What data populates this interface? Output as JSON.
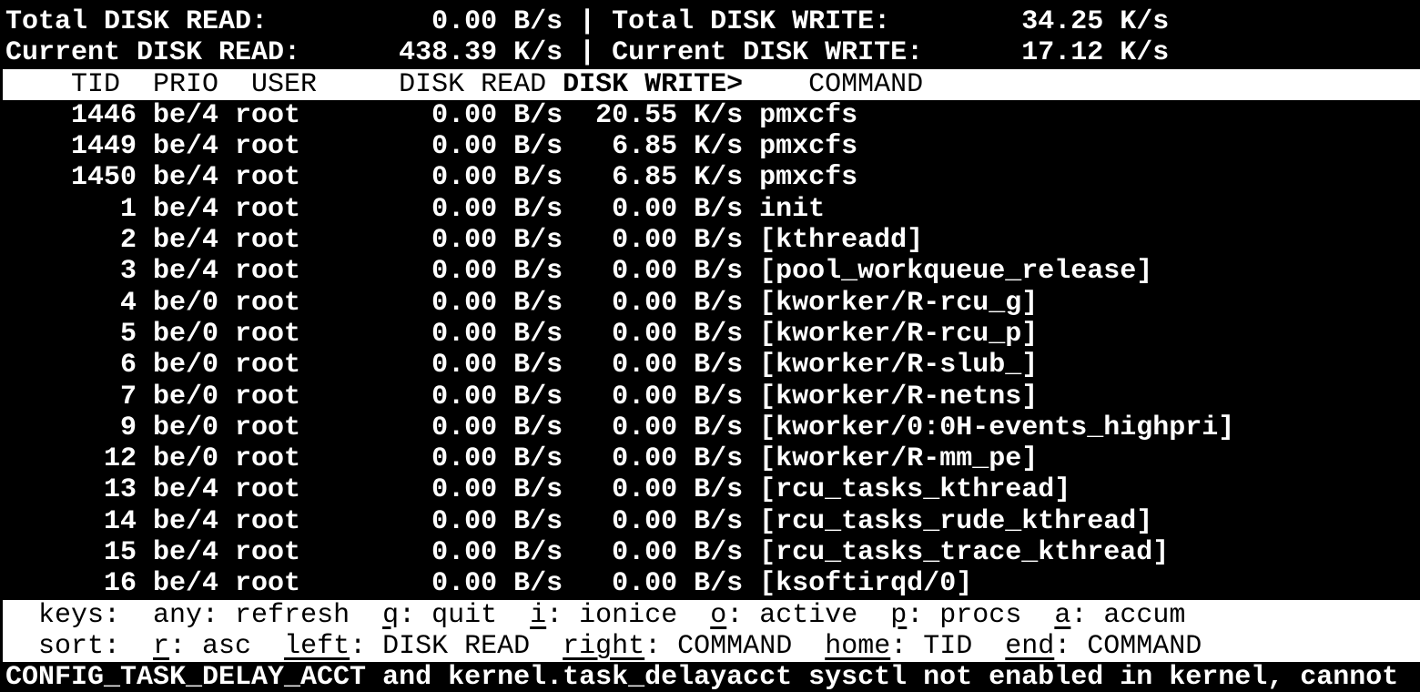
{
  "terminal": {
    "summary": {
      "separator": "|",
      "rows": [
        {
          "label": "Total DISK READ:",
          "value": "0.00 B/s",
          "label2": "Total DISK WRITE:",
          "value2": "34.25 K/s"
        },
        {
          "label": "Current DISK READ:",
          "value": "438.39 K/s",
          "label2": "Current DISK WRITE:",
          "value2": "17.12 K/s"
        }
      ]
    },
    "table": {
      "headers": {
        "tid": "TID",
        "prio": "PRIO",
        "user": "USER",
        "disk_read": "DISK READ",
        "disk_write": "DISK WRITE",
        "command": "COMMAND",
        "sort_indicator": ">",
        "sorted_column": "DISK WRITE"
      },
      "rows": [
        {
          "tid": "1446",
          "prio": "be/4",
          "user": "root",
          "disk_read": "0.00 B/s",
          "disk_write": "20.55 K/s",
          "command": "pmxcfs"
        },
        {
          "tid": "1449",
          "prio": "be/4",
          "user": "root",
          "disk_read": "0.00 B/s",
          "disk_write": "6.85 K/s",
          "command": "pmxcfs"
        },
        {
          "tid": "1450",
          "prio": "be/4",
          "user": "root",
          "disk_read": "0.00 B/s",
          "disk_write": "6.85 K/s",
          "command": "pmxcfs"
        },
        {
          "tid": "1",
          "prio": "be/4",
          "user": "root",
          "disk_read": "0.00 B/s",
          "disk_write": "0.00 B/s",
          "command": "init"
        },
        {
          "tid": "2",
          "prio": "be/4",
          "user": "root",
          "disk_read": "0.00 B/s",
          "disk_write": "0.00 B/s",
          "command": "[kthreadd]"
        },
        {
          "tid": "3",
          "prio": "be/4",
          "user": "root",
          "disk_read": "0.00 B/s",
          "disk_write": "0.00 B/s",
          "command": "[pool_workqueue_release]"
        },
        {
          "tid": "4",
          "prio": "be/0",
          "user": "root",
          "disk_read": "0.00 B/s",
          "disk_write": "0.00 B/s",
          "command": "[kworker/R-rcu_g]"
        },
        {
          "tid": "5",
          "prio": "be/0",
          "user": "root",
          "disk_read": "0.00 B/s",
          "disk_write": "0.00 B/s",
          "command": "[kworker/R-rcu_p]"
        },
        {
          "tid": "6",
          "prio": "be/0",
          "user": "root",
          "disk_read": "0.00 B/s",
          "disk_write": "0.00 B/s",
          "command": "[kworker/R-slub_]"
        },
        {
          "tid": "7",
          "prio": "be/0",
          "user": "root",
          "disk_read": "0.00 B/s",
          "disk_write": "0.00 B/s",
          "command": "[kworker/R-netns]"
        },
        {
          "tid": "9",
          "prio": "be/0",
          "user": "root",
          "disk_read": "0.00 B/s",
          "disk_write": "0.00 B/s",
          "command": "[kworker/0:0H-events_highpri]"
        },
        {
          "tid": "12",
          "prio": "be/0",
          "user": "root",
          "disk_read": "0.00 B/s",
          "disk_write": "0.00 B/s",
          "command": "[kworker/R-mm_pe]"
        },
        {
          "tid": "13",
          "prio": "be/4",
          "user": "root",
          "disk_read": "0.00 B/s",
          "disk_write": "0.00 B/s",
          "command": "[rcu_tasks_kthread]"
        },
        {
          "tid": "14",
          "prio": "be/4",
          "user": "root",
          "disk_read": "0.00 B/s",
          "disk_write": "0.00 B/s",
          "command": "[rcu_tasks_rude_kthread]"
        },
        {
          "tid": "15",
          "prio": "be/4",
          "user": "root",
          "disk_read": "0.00 B/s",
          "disk_write": "0.00 B/s",
          "command": "[rcu_tasks_trace_kthread]"
        },
        {
          "tid": "16",
          "prio": "be/4",
          "user": "root",
          "disk_read": "0.00 B/s",
          "disk_write": "0.00 B/s",
          "command": "[ksoftirqd/0]"
        }
      ]
    },
    "help": {
      "keys_label": "keys:",
      "keys": [
        {
          "key": "any",
          "action": "refresh",
          "hotkey": false
        },
        {
          "key": "q",
          "action": "quit",
          "hotkey": true
        },
        {
          "key": "i",
          "action": "ionice",
          "hotkey": true
        },
        {
          "key": "o",
          "action": "active",
          "hotkey": true
        },
        {
          "key": "p",
          "action": "procs",
          "hotkey": true
        },
        {
          "key": "a",
          "action": "accum",
          "hotkey": true
        }
      ],
      "sort_label": "sort:",
      "sort": [
        {
          "key": "r",
          "action": "asc",
          "hotkey": true
        },
        {
          "key": "left",
          "action": "DISK READ",
          "hotkey": true
        },
        {
          "key": "right",
          "action": "COMMAND",
          "hotkey": true
        },
        {
          "key": "home",
          "action": "TID",
          "hotkey": true
        },
        {
          "key": "end",
          "action": "COMMAND",
          "hotkey": true
        }
      ]
    },
    "status": "CONFIG_TASK_DELAY_ACCT and kernel.task_delayacct sysctl not enabled in kernel, cannot",
    "colors": {
      "background": "#000000",
      "foreground": "#ffffff",
      "bar_background": "#ffffff",
      "bar_foreground": "#000000"
    }
  }
}
